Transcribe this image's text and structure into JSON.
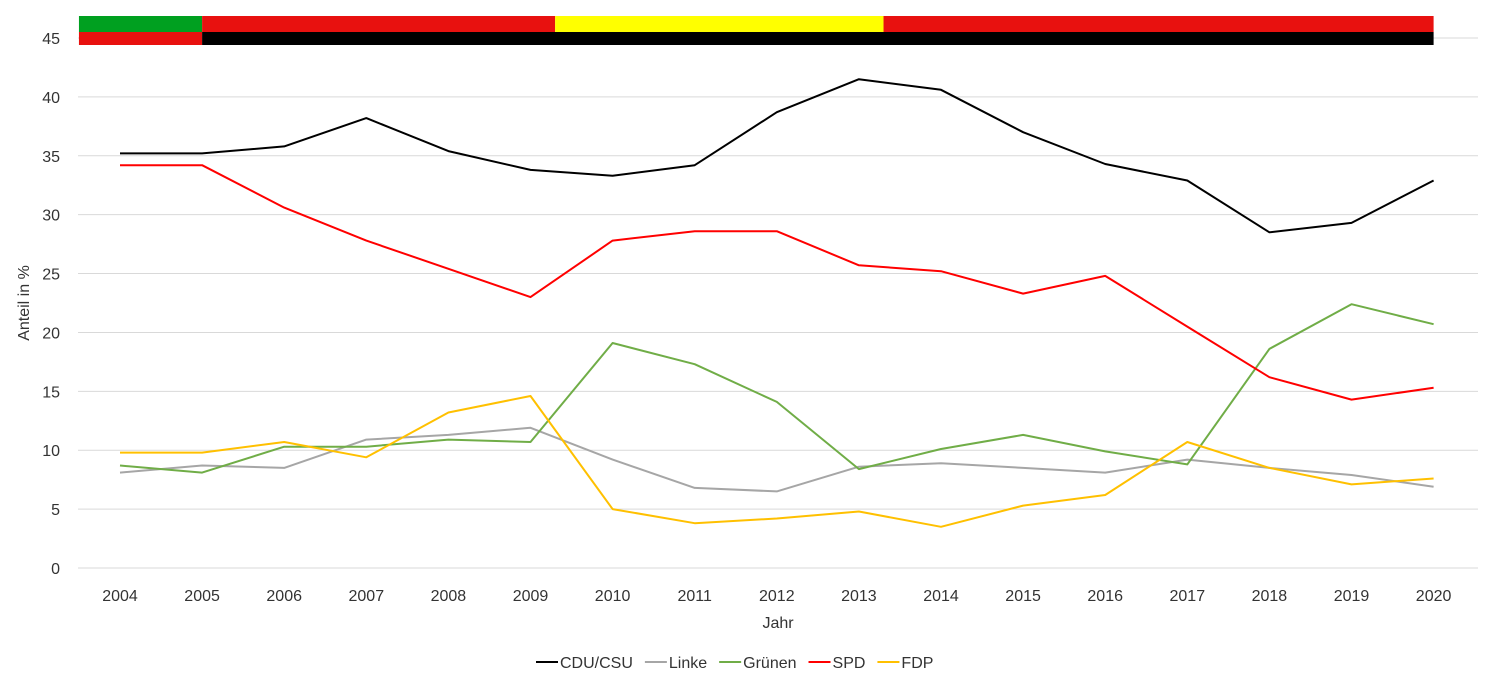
{
  "chart_data": {
    "type": "line",
    "xlabel": "Jahr",
    "ylabel": "Anteil in %",
    "ylim": [
      0,
      45
    ],
    "yticks": [
      0,
      5,
      10,
      15,
      20,
      25,
      30,
      35,
      40,
      45
    ],
    "grid": true,
    "legend_position": "bottom",
    "x": [
      "2004",
      "2005",
      "2006",
      "2007",
      "2008",
      "2009",
      "2010",
      "2011",
      "2012",
      "2013",
      "2014",
      "2015",
      "2016",
      "2017",
      "2018",
      "2019",
      "2020"
    ],
    "series": [
      {
        "name": "CDU/CSU",
        "color": "#000000",
        "values": [
          35.2,
          35.2,
          35.8,
          38.2,
          35.4,
          33.8,
          33.3,
          34.2,
          38.7,
          41.5,
          40.6,
          37.0,
          34.3,
          32.9,
          28.5,
          29.3,
          32.9
        ]
      },
      {
        "name": "Linke",
        "color": "#a6a6a6",
        "values": [
          8.1,
          8.7,
          8.5,
          10.9,
          11.3,
          11.9,
          9.2,
          6.8,
          6.5,
          8.6,
          8.9,
          8.5,
          8.1,
          9.2,
          8.5,
          7.9,
          6.9
        ]
      },
      {
        "name": "Grünen",
        "color": "#70ad47",
        "values": [
          8.7,
          8.1,
          10.3,
          10.3,
          10.9,
          10.7,
          19.1,
          17.3,
          14.1,
          8.4,
          10.1,
          11.3,
          9.9,
          8.8,
          18.6,
          22.4,
          20.7
        ]
      },
      {
        "name": "SPD",
        "color": "#ff0000",
        "values": [
          34.2,
          34.2,
          30.6,
          27.8,
          25.4,
          23.0,
          27.8,
          28.6,
          28.6,
          25.7,
          25.2,
          23.3,
          24.8,
          20.5,
          16.2,
          14.3,
          15.3
        ]
      },
      {
        "name": "FDP",
        "color": "#ffc000",
        "values": [
          9.8,
          9.8,
          10.7,
          9.4,
          13.2,
          14.6,
          5.0,
          3.8,
          4.2,
          4.8,
          3.5,
          5.3,
          6.2,
          10.7,
          8.5,
          7.1,
          7.6
        ]
      }
    ],
    "government_bands": [
      {
        "row": "top",
        "segments": [
          {
            "start": 2003.5,
            "end": 2005.0,
            "color": "#00a020"
          },
          {
            "start": 2005.0,
            "end": 2009.3,
            "color": "#e8110f"
          },
          {
            "start": 2009.3,
            "end": 2013.3,
            "color": "#ffff00"
          },
          {
            "start": 2013.3,
            "end": 2020.0,
            "color": "#e8110f"
          }
        ]
      },
      {
        "row": "bottom",
        "segments": [
          {
            "start": 2003.5,
            "end": 2005.0,
            "color": "#e8110f"
          },
          {
            "start": 2005.0,
            "end": 2020.0,
            "color": "#000000"
          }
        ]
      }
    ]
  }
}
